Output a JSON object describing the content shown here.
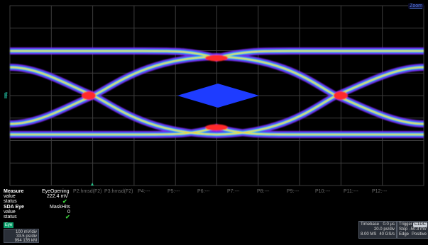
{
  "zoom_label": "Zoom",
  "channel_marker": "2",
  "measure": {
    "title": "Measure",
    "rows": [
      {
        "label": "value",
        "x": 0
      },
      {
        "label": "status",
        "x": 0
      }
    ],
    "p1_name": "EyeOpening",
    "p1_value": "222.4 mV",
    "p2": "P2:hmsd(F2)",
    "p3": "P3:hmsd(F2)",
    "p4": "P4:---",
    "p5": "P5:---",
    "p6": "P6:---",
    "p7": "P7:---",
    "p8": "P8:---",
    "p9": "P9:---",
    "p10": "P10:---",
    "p11": "P11:---",
    "p12": "P12:---"
  },
  "sda": {
    "title": "SDA Eye",
    "value_label": "value",
    "status_label": "status",
    "p_name": "MaskHits",
    "p_value": "0"
  },
  "channel": {
    "tag": "Eye",
    "vdiv": "100 mV/div",
    "tdiv": "33.5 ps/div",
    "count": "994 135 kM"
  },
  "timebase": {
    "title": "Timebase",
    "offset": "0.0 µs",
    "rate": "20.0 ps/div",
    "samples": "8.00 MS",
    "srate": "40 GS/s"
  },
  "trigger": {
    "title": "Trigger",
    "badge": "C1DC",
    "mode": "Stop",
    "level": "-50.3 mV",
    "type": "Edge",
    "slope": "Positive"
  },
  "colors": {
    "graticule": "#3c3c3c",
    "eye_outer": "#7a2cff",
    "eye_mid": "#2a6bff",
    "eye_inner": "#22ffd0",
    "eye_hot": "#ff2a2a",
    "mask": "#1e3cff"
  }
}
